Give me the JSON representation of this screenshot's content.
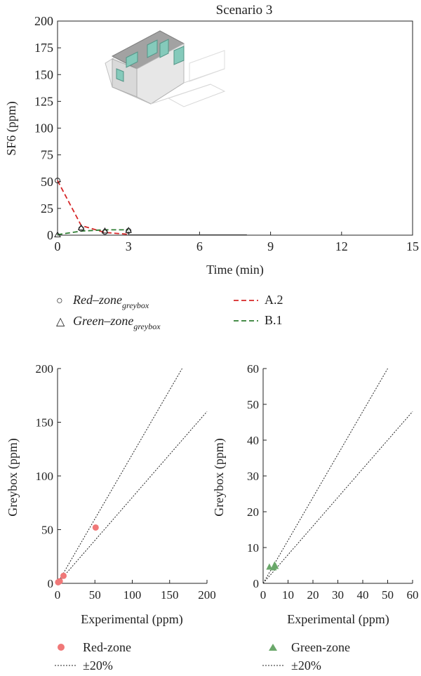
{
  "chart_data": [
    {
      "type": "line",
      "title": "Scenario 3",
      "xlabel": "Time (min)",
      "ylabel": "SF6 (ppm)",
      "xlim": [
        0,
        15
      ],
      "ylim": [
        0,
        200
      ],
      "x_ticks": [
        0,
        3,
        6,
        9,
        12,
        15
      ],
      "y_ticks": [
        0,
        25,
        50,
        75,
        100,
        125,
        150,
        175,
        200
      ],
      "grid": false,
      "inset": "house isometric sketch with colored zones",
      "series": [
        {
          "name": "A.2",
          "style": "dashed",
          "color": "#d62728",
          "x": [
            0,
            1,
            2,
            3
          ],
          "y": [
            51,
            9,
            2.5,
            0.8
          ]
        },
        {
          "name": "B.1",
          "style": "dashed",
          "color": "#2e7d32",
          "x": [
            0,
            1,
            2,
            3
          ],
          "y": [
            0.5,
            3.8,
            5,
            5
          ]
        },
        {
          "name": "Red-zone_greybox",
          "marker": "circle",
          "x": [
            0,
            1,
            2,
            3
          ],
          "y": [
            51,
            6,
            3,
            4
          ]
        },
        {
          "name": "Green-zone_greybox",
          "marker": "triangle",
          "x": [
            0,
            1,
            2,
            3
          ],
          "y": [
            0.3,
            7,
            4,
            4.5
          ]
        }
      ],
      "legend": {
        "markers": [
          {
            "symbol": "○",
            "main": "Red–zone",
            "sub": "greybox"
          },
          {
            "symbol": "△",
            "main": "Green–zone",
            "sub": "greybox"
          }
        ],
        "lines": [
          {
            "label": "A.2",
            "color": "#d62728"
          },
          {
            "label": "B.1",
            "color": "#2e7d32"
          }
        ]
      }
    },
    {
      "type": "scatter",
      "xlabel": "Experimental (ppm)",
      "ylabel": "Greybox (ppm)",
      "xlim": [
        0,
        200
      ],
      "ylim": [
        0,
        200
      ],
      "x_ticks": [
        0,
        50,
        100,
        150,
        200
      ],
      "y_ticks": [
        0,
        50,
        100,
        150,
        200
      ],
      "series": [
        {
          "name": "Red-zone",
          "color": "#f07878",
          "marker": "circle",
          "points": [
            [
              51,
              52
            ],
            [
              8,
              7
            ],
            [
              3,
              2
            ],
            [
              0.8,
              1
            ]
          ]
        }
      ],
      "reference_lines": {
        "label": "±20%",
        "slopes": [
          1.2,
          0.8
        ]
      },
      "legend": [
        {
          "symbol": "●",
          "label": "Red-zone",
          "color": "#f07878"
        },
        {
          "symbol": "dotted",
          "label": "±20%"
        }
      ]
    },
    {
      "type": "scatter",
      "xlabel": "Experimental (ppm)",
      "ylabel": "Greybox (ppm)",
      "xlim": [
        0,
        60
      ],
      "ylim": [
        0,
        60
      ],
      "x_ticks": [
        0,
        10,
        20,
        30,
        40,
        50,
        60
      ],
      "y_ticks": [
        0,
        10,
        20,
        30,
        40,
        50,
        60
      ],
      "series": [
        {
          "name": "Green-zone",
          "color": "#6aa86a",
          "marker": "triangle",
          "points": [
            [
              2.5,
              4.6
            ],
            [
              4.6,
              5.2
            ],
            [
              5.0,
              4.8
            ],
            [
              4.2,
              4.4
            ]
          ]
        }
      ],
      "reference_lines": {
        "label": "±20%",
        "slopes": [
          1.2,
          0.8
        ]
      },
      "legend": [
        {
          "symbol": "▲",
          "label": "Green-zone",
          "color": "#6aa86a"
        },
        {
          "symbol": "dotted",
          "label": "±20%"
        }
      ]
    }
  ]
}
